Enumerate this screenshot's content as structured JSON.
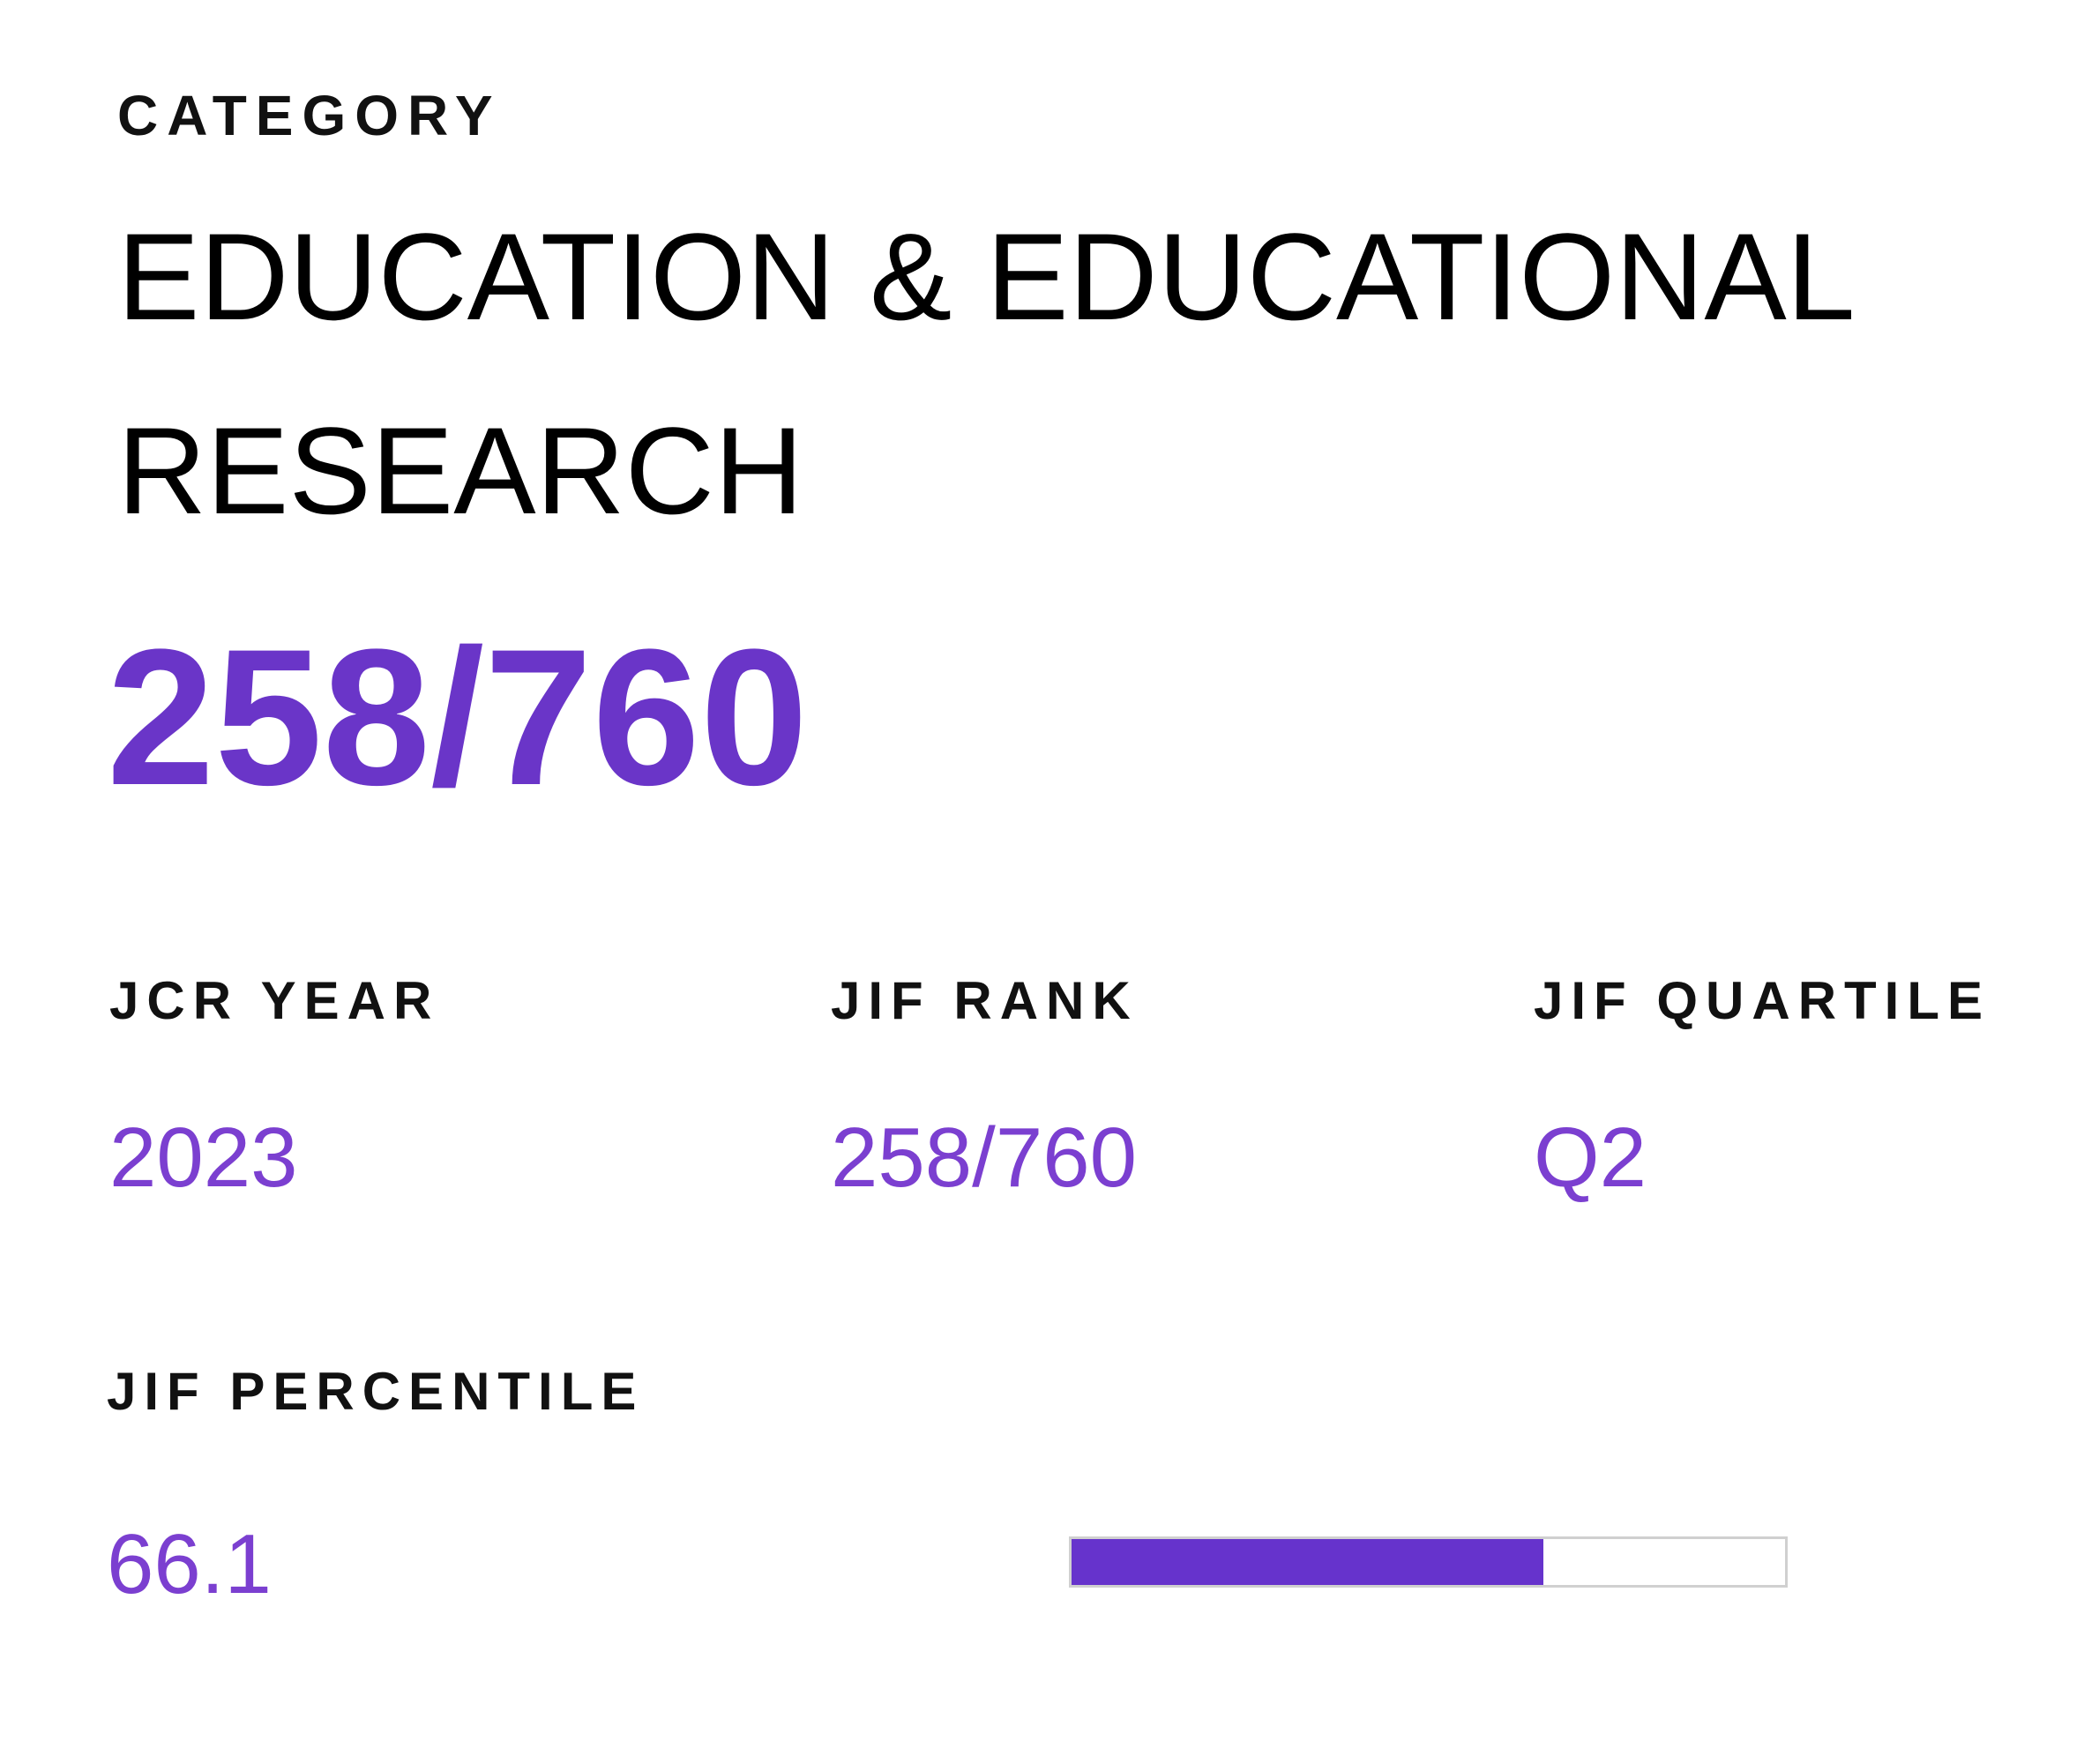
{
  "category_label": "CATEGORY",
  "category": "EDUCATION & EDUCATIONAL RESEARCH",
  "rank": "258/760",
  "fields": [
    {
      "label": "JCR YEAR",
      "value": "2023"
    },
    {
      "label": "JIF RANK",
      "value": "258/760"
    },
    {
      "label": "JIF QUARTILE",
      "value": "Q2"
    }
  ],
  "percentile": {
    "label": "JIF PERCENTILE",
    "value": 66.1
  }
}
